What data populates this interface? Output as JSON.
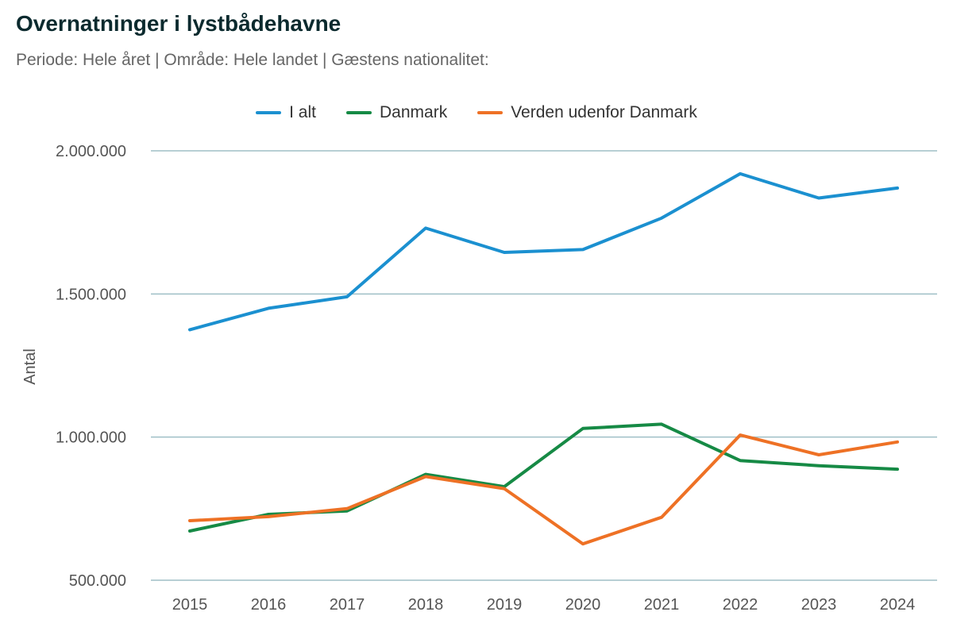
{
  "chart_data": {
    "type": "line",
    "title": "Overnatninger i lystbådehavne",
    "subtitle": "Periode: Hele året | Område: Hele landet | Gæstens nationalitet:",
    "xlabel": "",
    "ylabel": "Antal",
    "x": [
      "2015",
      "2016",
      "2017",
      "2018",
      "2019",
      "2020",
      "2021",
      "2022",
      "2023",
      "2024"
    ],
    "ylim": [
      500000,
      2000000
    ],
    "yticks": [
      500000,
      1000000,
      1500000,
      2000000
    ],
    "ytick_labels": [
      "500.000",
      "1.000.000",
      "1.500.000",
      "2.000.000"
    ],
    "grid": true,
    "legend_position": "top-center",
    "series": [
      {
        "name": "I alt",
        "color": "#1b90d0",
        "values": [
          1375000,
          1450000,
          1490000,
          1730000,
          1645000,
          1655000,
          1765000,
          1920000,
          1835000,
          1870000
        ]
      },
      {
        "name": "Danmark",
        "color": "#168a45",
        "values": [
          672000,
          730000,
          742000,
          870000,
          827000,
          1030000,
          1045000,
          918000,
          900000,
          888000
        ]
      },
      {
        "name": "Verden udenfor Danmark",
        "color": "#ee7125",
        "values": [
          708000,
          722000,
          750000,
          862000,
          820000,
          627000,
          720000,
          1007000,
          938000,
          983000
        ]
      }
    ]
  }
}
